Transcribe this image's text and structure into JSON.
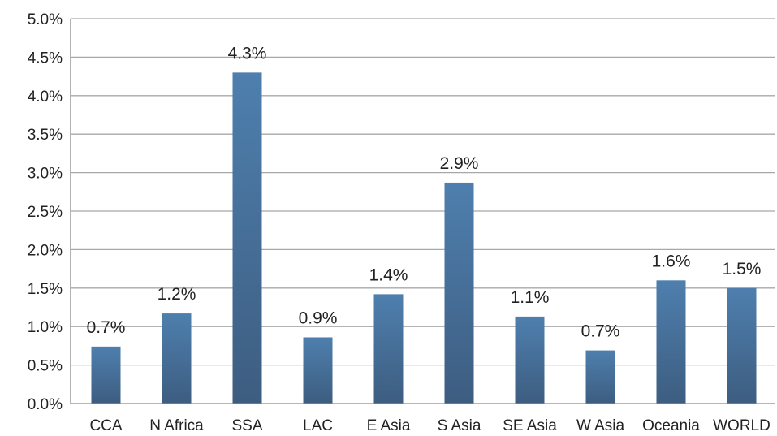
{
  "chart_data": {
    "type": "bar",
    "title": "",
    "xlabel": "",
    "ylabel": "",
    "categories": [
      "CCA",
      "N Africa",
      "SSA",
      "LAC",
      "E Asia",
      "S Asia",
      "SE Asia",
      "W Asia",
      "Oceania",
      "WORLD"
    ],
    "values": [
      0.0074,
      0.0117,
      0.043,
      0.0086,
      0.0142,
      0.0287,
      0.0113,
      0.0069,
      0.016,
      0.015
    ],
    "data_labels": [
      "0.7%",
      "1.2%",
      "4.3%",
      "0.9%",
      "1.4%",
      "2.9%",
      "1.1%",
      "0.7%",
      "1.6%",
      "1.5%"
    ],
    "ylim": [
      0,
      0.05
    ],
    "y_ticks": [
      0,
      0.005,
      0.01,
      0.015,
      0.02,
      0.025,
      0.03,
      0.035,
      0.04,
      0.045,
      0.05
    ],
    "y_tick_labels": [
      "0.0%",
      "0.5%",
      "1.0%",
      "1.5%",
      "2.0%",
      "2.5%",
      "3.0%",
      "3.5%",
      "4.0%",
      "4.5%",
      "5.0%"
    ],
    "grid": true,
    "legend": "none",
    "colors": {
      "bar_top": "#4e7fae",
      "bar_bottom": "#3d5d80"
    }
  }
}
